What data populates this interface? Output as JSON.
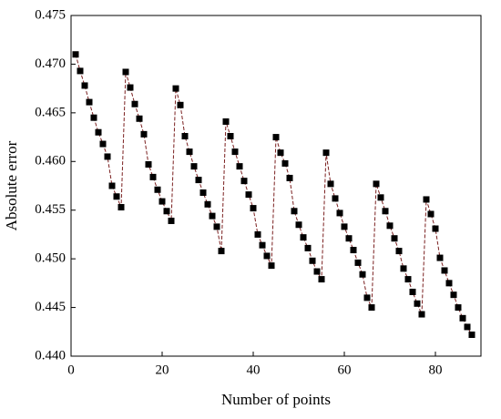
{
  "chart_data": {
    "type": "line",
    "xlabel": "Number of points",
    "ylabel": "Absolute error",
    "x": [
      1,
      2,
      3,
      4,
      5,
      6,
      7,
      8,
      9,
      10,
      11,
      12,
      13,
      14,
      15,
      16,
      17,
      18,
      19,
      20,
      21,
      22,
      23,
      24,
      25,
      26,
      27,
      28,
      29,
      30,
      31,
      32,
      33,
      34,
      35,
      36,
      37,
      38,
      39,
      40,
      41,
      42,
      43,
      44,
      45,
      46,
      47,
      48,
      49,
      50,
      51,
      52,
      53,
      54,
      55,
      56,
      57,
      58,
      59,
      60,
      61,
      62,
      63,
      64,
      65,
      66,
      67,
      68,
      69,
      70,
      71,
      72,
      73,
      74,
      75,
      76,
      77,
      78,
      79,
      80,
      81,
      82,
      83,
      84,
      85,
      86,
      87,
      88
    ],
    "values": [
      0.471,
      0.4693,
      0.4678,
      0.4661,
      0.4645,
      0.463,
      0.4618,
      0.4605,
      0.4575,
      0.4564,
      0.4553,
      0.4692,
      0.4676,
      0.4659,
      0.4644,
      0.4628,
      0.4597,
      0.4584,
      0.4571,
      0.4559,
      0.4549,
      0.4539,
      0.4675,
      0.4658,
      0.4626,
      0.461,
      0.4595,
      0.4581,
      0.4568,
      0.4556,
      0.4544,
      0.4533,
      0.4508,
      0.4641,
      0.4626,
      0.461,
      0.4595,
      0.458,
      0.4566,
      0.4552,
      0.4525,
      0.4514,
      0.4503,
      0.4493,
      0.4625,
      0.4609,
      0.4598,
      0.4583,
      0.4549,
      0.4535,
      0.4522,
      0.4511,
      0.4498,
      0.4487,
      0.4479,
      0.4609,
      0.4577,
      0.4562,
      0.4547,
      0.4533,
      0.4521,
      0.4509,
      0.4496,
      0.4484,
      0.446,
      0.445,
      0.4577,
      0.4563,
      0.4549,
      0.4534,
      0.4521,
      0.4508,
      0.449,
      0.4479,
      0.4466,
      0.4454,
      0.4443,
      0.4561,
      0.4546,
      0.4531,
      0.4501,
      0.4488,
      0.4475,
      0.4463,
      0.445,
      0.4439,
      0.443,
      0.4422
    ],
    "color": "#7a1f1f",
    "marker_color": "#000000",
    "xlim": [
      0,
      90
    ],
    "xticks": [
      0,
      20,
      40,
      60,
      80
    ],
    "ylim": [
      0.44,
      0.475
    ],
    "yticks": [
      {
        "value": 0.44,
        "label": "0.440"
      },
      {
        "value": 0.445,
        "label": "0.445"
      },
      {
        "value": 0.45,
        "label": "0.450"
      },
      {
        "value": 0.455,
        "label": "0.455"
      },
      {
        "value": 0.46,
        "label": "0.460"
      },
      {
        "value": 0.465,
        "label": "0.465"
      },
      {
        "value": 0.47,
        "label": "0.470"
      },
      {
        "value": 0.475,
        "label": "0.475"
      }
    ]
  }
}
